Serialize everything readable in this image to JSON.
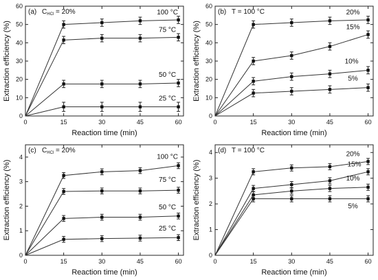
{
  "chart_data": [
    {
      "type": "line",
      "panel_label": "(a)",
      "condition": {
        "prefix": "C",
        "subscript": "HCl",
        "suffix": " = 20%"
      },
      "xlabel": "Reaction time (min)",
      "ylabel": "Extraction efficiency (%)",
      "x": [
        0,
        15,
        30,
        45,
        60
      ],
      "xticks": [
        "0",
        "15",
        "30",
        "45",
        "60"
      ],
      "xlim": [
        0,
        62
      ],
      "ylim": [
        0,
        60
      ],
      "yticks": [
        "0",
        "10",
        "20",
        "30",
        "40",
        "50",
        "60"
      ],
      "series": [
        {
          "name": "100 °C",
          "values": [
            0,
            50,
            51,
            52,
            52.5
          ],
          "errors": [
            0,
            2,
            2,
            2,
            2
          ]
        },
        {
          "name": "75 °C",
          "values": [
            0,
            41.5,
            42.5,
            42.5,
            43
          ],
          "errors": [
            0,
            2,
            2,
            2,
            2
          ]
        },
        {
          "name": "50 °C",
          "values": [
            0,
            17.5,
            17.5,
            17.5,
            18
          ],
          "errors": [
            0,
            2,
            2,
            2,
            2
          ]
        },
        {
          "name": "25 °C",
          "values": [
            0,
            5,
            5,
            5,
            5
          ],
          "errors": [
            0,
            2.5,
            2.5,
            2.5,
            2.5
          ]
        }
      ]
    },
    {
      "type": "line",
      "panel_label": "(b)",
      "condition": {
        "prefix": "T = 100 °C",
        "subscript": "",
        "suffix": ""
      },
      "xlabel": "Reaction time (min)",
      "ylabel": "Extraction efficiency (%)",
      "x": [
        0,
        15,
        30,
        45,
        60
      ],
      "xticks": [
        "0",
        "15",
        "30",
        "45",
        "60"
      ],
      "xlim": [
        0,
        62
      ],
      "ylim": [
        0,
        60
      ],
      "yticks": [
        "0",
        "10",
        "20",
        "30",
        "40",
        "50",
        "60"
      ],
      "series": [
        {
          "name": "20%",
          "values": [
            0,
            50,
            51,
            52,
            52.5
          ],
          "errors": [
            0,
            2,
            2,
            2,
            2
          ]
        },
        {
          "name": "15%",
          "values": [
            0,
            30,
            33,
            38,
            44.5
          ],
          "errors": [
            0,
            2,
            2,
            2,
            2
          ]
        },
        {
          "name": "10%",
          "values": [
            0,
            19,
            21.5,
            23,
            25
          ],
          "errors": [
            0,
            2,
            2,
            2,
            2
          ]
        },
        {
          "name": "5%",
          "values": [
            0,
            12.5,
            13.5,
            14.5,
            15.5
          ],
          "errors": [
            0,
            2,
            2,
            2,
            2
          ]
        }
      ]
    },
    {
      "type": "line",
      "panel_label": "(c)",
      "condition": {
        "prefix": "C",
        "subscript": "HCl",
        "suffix": " = 20%"
      },
      "xlabel": "Reaction time (min)",
      "ylabel": "Extraction efficiency (%)",
      "x": [
        0,
        15,
        30,
        45,
        60
      ],
      "xticks": [
        "0",
        "15",
        "30",
        "45",
        "60"
      ],
      "xlim": [
        0,
        62
      ],
      "ylim": [
        0,
        4.5
      ],
      "yticks": [
        "0",
        "1",
        "2",
        "3",
        "4"
      ],
      "series": [
        {
          "name": "100 °C",
          "values": [
            0,
            3.25,
            3.4,
            3.45,
            3.65
          ],
          "errors": [
            0,
            0.12,
            0.12,
            0.12,
            0.12
          ]
        },
        {
          "name": "75 °C",
          "values": [
            0,
            2.6,
            2.62,
            2.62,
            2.65
          ],
          "errors": [
            0,
            0.12,
            0.12,
            0.12,
            0.12
          ]
        },
        {
          "name": "50 °C",
          "values": [
            0,
            1.5,
            1.55,
            1.55,
            1.6
          ],
          "errors": [
            0,
            0.12,
            0.12,
            0.12,
            0.12
          ]
        },
        {
          "name": "25 °C",
          "values": [
            0,
            0.65,
            0.68,
            0.7,
            0.72
          ],
          "errors": [
            0,
            0.12,
            0.12,
            0.12,
            0.12
          ]
        }
      ]
    },
    {
      "type": "line",
      "panel_label": "(d)",
      "condition": {
        "prefix": "T = 100 °C",
        "subscript": "",
        "suffix": ""
      },
      "xlabel": "Reaction time (min)",
      "ylabel": "Extraction efficiency (%)",
      "x": [
        0,
        15,
        30,
        45,
        60
      ],
      "xticks": [
        "0",
        "15",
        "30",
        "45",
        "60"
      ],
      "xlim": [
        0,
        62
      ],
      "ylim": [
        0,
        4.3
      ],
      "yticks": [
        "0",
        "1",
        "2",
        "3",
        "4"
      ],
      "series": [
        {
          "name": "20%",
          "values": [
            0,
            3.25,
            3.4,
            3.45,
            3.65
          ],
          "errors": [
            0,
            0.12,
            0.12,
            0.12,
            0.12
          ]
        },
        {
          "name": "15%",
          "values": [
            0,
            2.6,
            2.75,
            2.9,
            3.25
          ],
          "errors": [
            0,
            0.12,
            0.12,
            0.12,
            0.12
          ]
        },
        {
          "name": "10%",
          "values": [
            0,
            2.35,
            2.5,
            2.6,
            2.65
          ],
          "errors": [
            0,
            0.12,
            0.12,
            0.12,
            0.12
          ]
        },
        {
          "name": "5%",
          "values": [
            0,
            2.2,
            2.2,
            2.2,
            2.2
          ],
          "errors": [
            0,
            0.12,
            0.12,
            0.12,
            0.12
          ]
        }
      ]
    }
  ]
}
